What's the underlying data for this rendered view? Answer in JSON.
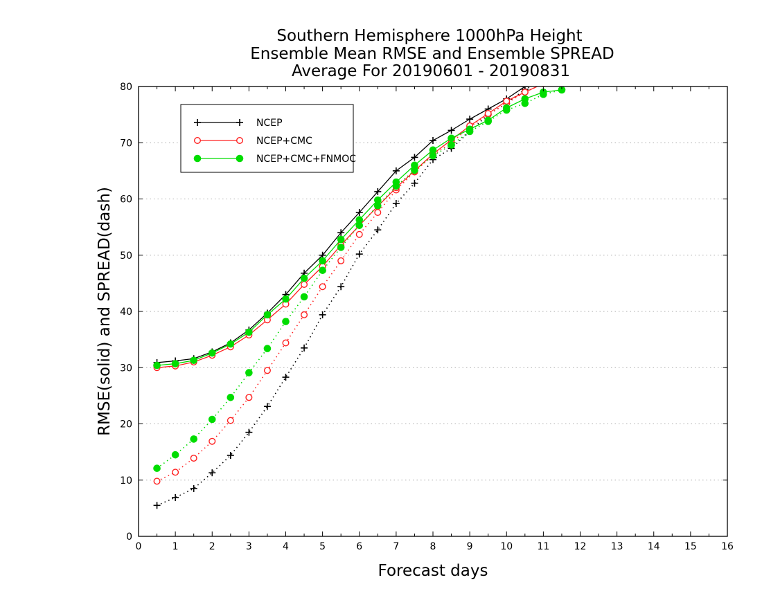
{
  "chart_data": {
    "type": "line",
    "title": [
      "Southern Hemisphere 1000hPa Height",
      "Ensemble Mean RMSE and Ensemble SPREAD",
      "Average For 20190601 - 20190831"
    ],
    "xlabel": "Forecast days",
    "ylabel": "RMSE(solid) and SPREAD(dash)",
    "xlim": [
      0,
      16
    ],
    "ylim": [
      0,
      80
    ],
    "xticks": [
      "0",
      "1",
      "2",
      "3",
      "4",
      "5",
      "6",
      "7",
      "8",
      "9",
      "10",
      "11",
      "12",
      "13",
      "14",
      "15",
      "16"
    ],
    "yticks": [
      "0",
      "10",
      "20",
      "30",
      "40",
      "50",
      "60",
      "70",
      "80"
    ],
    "grid": "horizontal dotted",
    "legend_position": "top-left",
    "x": [
      0.5,
      1,
      1.5,
      2,
      2.5,
      3,
      3.5,
      4,
      4.5,
      5,
      5.5,
      6,
      6.5,
      7,
      7.5,
      8,
      8.5,
      9,
      9.5,
      10,
      10.5,
      11,
      11.5
    ],
    "series": [
      {
        "name": "NCEP",
        "color": "#000000",
        "marker": "plus",
        "rmse": [
          30.9,
          31.2,
          31.6,
          32.8,
          34.4,
          36.7,
          39.7,
          43.0,
          46.8,
          50.0,
          54.0,
          57.6,
          61.3,
          65.0,
          67.4,
          70.4,
          72.2,
          74.2,
          76.0,
          77.8,
          80.0,
          81.0,
          81.5
        ],
        "spread": [
          5.5,
          6.9,
          8.5,
          11.3,
          14.4,
          18.5,
          23.1,
          28.3,
          33.5,
          39.4,
          44.4,
          50.2,
          54.5,
          59.2,
          62.8,
          67.0,
          69.0,
          72.0,
          75.0,
          77.0,
          79.5,
          81.0,
          81.5
        ]
      },
      {
        "name": "NCEP+CMC",
        "color": "#ff2020",
        "marker": "open-circle",
        "rmse": [
          30.0,
          30.3,
          31.0,
          32.2,
          33.7,
          35.8,
          38.5,
          41.3,
          44.8,
          48.0,
          51.8,
          55.3,
          58.7,
          62.0,
          65.0,
          68.0,
          70.5,
          73.0,
          75.2,
          77.4,
          79.0,
          80.5,
          81.0
        ],
        "spread": [
          9.8,
          11.4,
          13.9,
          16.9,
          20.6,
          24.7,
          29.5,
          34.4,
          39.4,
          44.4,
          49.0,
          53.7,
          57.6,
          61.6,
          64.8,
          67.8,
          70.0,
          72.8,
          75.0,
          77.0,
          79.0,
          80.5,
          81.0
        ]
      },
      {
        "name": "NCEP+CMC+FNMOC",
        "color": "#00dd00",
        "marker": "filled-circle",
        "rmse": [
          30.4,
          30.7,
          31.3,
          32.6,
          34.2,
          36.3,
          39.4,
          42.2,
          45.9,
          49.0,
          52.8,
          56.3,
          59.8,
          63.0,
          66.0,
          68.7,
          70.8,
          72.4,
          74.0,
          76.2,
          77.8,
          79.0,
          79.4
        ],
        "spread": [
          12.1,
          14.5,
          17.3,
          20.8,
          24.7,
          29.1,
          33.4,
          38.2,
          42.6,
          47.3,
          51.4,
          55.3,
          58.8,
          62.3,
          65.1,
          67.7,
          69.6,
          72.0,
          73.8,
          75.8,
          77.0,
          78.6,
          79.4
        ]
      }
    ]
  }
}
